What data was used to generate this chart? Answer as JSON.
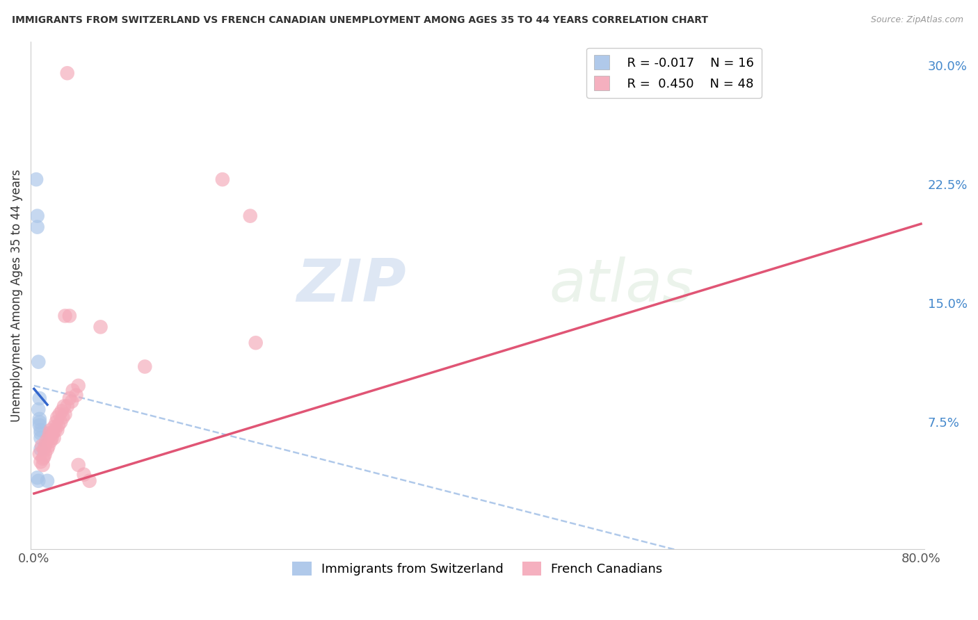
{
  "title": "IMMIGRANTS FROM SWITZERLAND VS FRENCH CANADIAN UNEMPLOYMENT AMONG AGES 35 TO 44 YEARS CORRELATION CHART",
  "source": "Source: ZipAtlas.com",
  "ylabel": "Unemployment Among Ages 35 to 44 years",
  "xlim": [
    0,
    0.8
  ],
  "ylim": [
    -0.005,
    0.315
  ],
  "xtick_positions": [
    0.0,
    0.1,
    0.2,
    0.3,
    0.4,
    0.5,
    0.6,
    0.7,
    0.8
  ],
  "xtick_labels": [
    "0.0%",
    "",
    "",
    "",
    "",
    "",
    "",
    "",
    "80.0%"
  ],
  "ytick_labels_right": [
    "30.0%",
    "22.5%",
    "15.0%",
    "7.5%"
  ],
  "yticks_right": [
    0.3,
    0.225,
    0.15,
    0.075
  ],
  "legend_blue_R": "R = -0.017",
  "legend_blue_N": "N = 16",
  "legend_pink_R": "R =  0.450",
  "legend_pink_N": "N = 48",
  "blue_color": "#A8C4E8",
  "pink_color": "#F4A8B8",
  "blue_line_color": "#3366CC",
  "pink_line_color": "#E05575",
  "blue_scatter": [
    [
      0.002,
      0.228
    ],
    [
      0.003,
      0.205
    ],
    [
      0.003,
      0.198
    ],
    [
      0.004,
      0.113
    ],
    [
      0.005,
      0.09
    ],
    [
      0.004,
      0.083
    ],
    [
      0.005,
      0.077
    ],
    [
      0.005,
      0.075
    ],
    [
      0.005,
      0.073
    ],
    [
      0.006,
      0.07
    ],
    [
      0.006,
      0.068
    ],
    [
      0.006,
      0.065
    ],
    [
      0.006,
      0.058
    ],
    [
      0.003,
      0.04
    ],
    [
      0.004,
      0.038
    ],
    [
      0.012,
      0.038
    ]
  ],
  "pink_scatter": [
    [
      0.005,
      0.055
    ],
    [
      0.006,
      0.05
    ],
    [
      0.007,
      0.06
    ],
    [
      0.008,
      0.052
    ],
    [
      0.008,
      0.048
    ],
    [
      0.009,
      0.058
    ],
    [
      0.009,
      0.053
    ],
    [
      0.01,
      0.06
    ],
    [
      0.01,
      0.055
    ],
    [
      0.011,
      0.063
    ],
    [
      0.012,
      0.058
    ],
    [
      0.013,
      0.065
    ],
    [
      0.013,
      0.06
    ],
    [
      0.014,
      0.068
    ],
    [
      0.015,
      0.063
    ],
    [
      0.015,
      0.07
    ],
    [
      0.016,
      0.065
    ],
    [
      0.017,
      0.068
    ],
    [
      0.018,
      0.072
    ],
    [
      0.018,
      0.065
    ],
    [
      0.019,
      0.07
    ],
    [
      0.02,
      0.075
    ],
    [
      0.021,
      0.078
    ],
    [
      0.021,
      0.07
    ],
    [
      0.022,
      0.073
    ],
    [
      0.023,
      0.08
    ],
    [
      0.024,
      0.075
    ],
    [
      0.025,
      0.082
    ],
    [
      0.026,
      0.078
    ],
    [
      0.027,
      0.085
    ],
    [
      0.028,
      0.08
    ],
    [
      0.03,
      0.085
    ],
    [
      0.032,
      0.09
    ],
    [
      0.034,
      0.088
    ],
    [
      0.035,
      0.095
    ],
    [
      0.038,
      0.092
    ],
    [
      0.04,
      0.098
    ],
    [
      0.028,
      0.142
    ],
    [
      0.032,
      0.142
    ],
    [
      0.06,
      0.135
    ],
    [
      0.1,
      0.11
    ],
    [
      0.17,
      0.228
    ],
    [
      0.195,
      0.205
    ],
    [
      0.03,
      0.295
    ],
    [
      0.2,
      0.125
    ],
    [
      0.04,
      0.048
    ],
    [
      0.045,
      0.042
    ],
    [
      0.05,
      0.038
    ]
  ],
  "watermark_zip": "ZIP",
  "watermark_atlas": "atlas",
  "background_color": "#ffffff",
  "grid_color": "#dddddd"
}
